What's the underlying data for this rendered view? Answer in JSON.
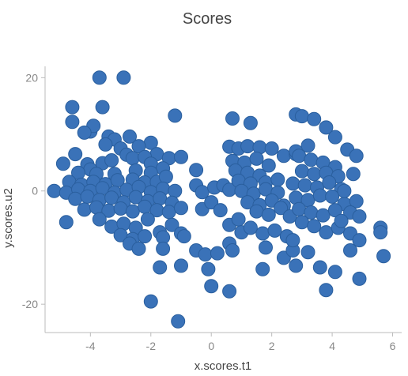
{
  "chart_data": {
    "type": "scatter",
    "title": "Scores",
    "xlabel": "x.scores.t1",
    "ylabel": "y.scores.u2",
    "xlim": [
      -5.5,
      6.3
    ],
    "ylim": [
      -25,
      22
    ],
    "x_ticks": [
      -4,
      -2,
      0,
      2,
      4,
      6
    ],
    "x_tick_labels": [
      "-4",
      "-2",
      "0",
      "2",
      "4",
      "6"
    ],
    "y_ticks": [
      -20,
      0,
      20
    ],
    "y_tick_labels": [
      "-20",
      "0",
      "20"
    ],
    "grid": false,
    "point_color": "#3a72b8",
    "series": [
      {
        "points": [
          [
            -3.7,
            20.0
          ],
          [
            -2.9,
            20.0
          ],
          [
            -4.6,
            14.8
          ],
          [
            -3.6,
            14.8
          ],
          [
            -4.6,
            12.2
          ],
          [
            -4.0,
            10.5
          ],
          [
            -3.9,
            11.5
          ],
          [
            -4.2,
            10.3
          ],
          [
            -3.4,
            9.6
          ],
          [
            -3.2,
            9.1
          ],
          [
            -2.7,
            9.6
          ],
          [
            -2.0,
            8.5
          ],
          [
            -1.2,
            13.3
          ],
          [
            -3.5,
            8.2
          ],
          [
            -3.0,
            7.5
          ],
          [
            -2.4,
            7.9
          ],
          [
            -1.8,
            6.5
          ],
          [
            -1.4,
            5.8
          ],
          [
            -1.0,
            6.0
          ],
          [
            -4.5,
            6.5
          ],
          [
            -4.9,
            4.8
          ],
          [
            -4.1,
            4.7
          ],
          [
            -3.6,
            4.9
          ],
          [
            -2.8,
            6.4
          ],
          [
            -2.6,
            5.8
          ],
          [
            -2.2,
            6.0
          ],
          [
            -2.0,
            4.8
          ],
          [
            -1.6,
            4.0
          ],
          [
            -3.3,
            5.4
          ],
          [
            -4.0,
            3.8
          ],
          [
            -4.4,
            3.2
          ],
          [
            -3.8,
            3.0
          ],
          [
            -3.2,
            3.0
          ],
          [
            -2.5,
            3.6
          ],
          [
            -2.0,
            3.2
          ],
          [
            -4.7,
            1.6
          ],
          [
            -4.3,
            1.1
          ],
          [
            -3.9,
            1.6
          ],
          [
            -3.5,
            1.2
          ],
          [
            -3.1,
            1.9
          ],
          [
            -2.6,
            2.0
          ],
          [
            -2.2,
            1.5
          ],
          [
            -1.8,
            1.6
          ],
          [
            -1.5,
            2.5
          ],
          [
            -5.2,
            0.0
          ],
          [
            -4.8,
            -0.3
          ],
          [
            -4.4,
            0.3
          ],
          [
            -4.0,
            0.0
          ],
          [
            -3.6,
            0.5
          ],
          [
            -3.2,
            -0.3
          ],
          [
            -2.8,
            0.2
          ],
          [
            -2.4,
            0.7
          ],
          [
            -2.0,
            -0.2
          ],
          [
            -1.6,
            0.4
          ],
          [
            -1.2,
            0.0
          ],
          [
            -4.5,
            -1.4
          ],
          [
            -4.1,
            -1.0
          ],
          [
            -3.7,
            -1.6
          ],
          [
            -3.3,
            -1.2
          ],
          [
            -2.9,
            -2.0
          ],
          [
            -2.5,
            -1.1
          ],
          [
            -2.1,
            -1.8
          ],
          [
            -1.7,
            -1.3
          ],
          [
            -1.3,
            -2.1
          ],
          [
            -4.2,
            -3.3
          ],
          [
            -3.8,
            -2.9
          ],
          [
            -3.4,
            -3.5
          ],
          [
            -3.0,
            -3.1
          ],
          [
            -2.6,
            -3.6
          ],
          [
            -2.2,
            -2.8
          ],
          [
            -1.8,
            -3.4
          ],
          [
            -1.4,
            -3.7
          ],
          [
            -1.0,
            -3.0
          ],
          [
            -4.8,
            -5.5
          ],
          [
            -3.7,
            -5.0
          ],
          [
            -3.3,
            -6.3
          ],
          [
            -2.9,
            -5.8
          ],
          [
            -2.5,
            -6.5
          ],
          [
            -2.1,
            -5.0
          ],
          [
            -1.7,
            -7.3
          ],
          [
            -1.3,
            -6.0
          ],
          [
            -1.0,
            -7.5
          ],
          [
            -3.0,
            -7.8
          ],
          [
            -2.6,
            -8.5
          ],
          [
            -2.2,
            -8.0
          ],
          [
            -1.6,
            -8.2
          ],
          [
            -0.9,
            -8.0
          ],
          [
            -2.7,
            -9.3
          ],
          [
            -2.4,
            -10.2
          ],
          [
            -1.6,
            -10.2
          ],
          [
            -0.5,
            -10.5
          ],
          [
            -1.7,
            -13.5
          ],
          [
            -1.0,
            -13.2
          ],
          [
            -0.2,
            -11.2
          ],
          [
            0.2,
            -11.0
          ],
          [
            -0.1,
            -13.8
          ],
          [
            0.0,
            -16.8
          ],
          [
            -2.0,
            -19.5
          ],
          [
            -1.1,
            -23.0
          ],
          [
            -0.5,
            3.7
          ],
          [
            -0.5,
            1.0
          ],
          [
            -0.3,
            -0.2
          ],
          [
            0.1,
            0.6
          ],
          [
            0.4,
            1.0
          ],
          [
            0.6,
            0.2
          ],
          [
            -0.3,
            -3.2
          ],
          [
            0.0,
            -2.0
          ],
          [
            0.3,
            -3.4
          ],
          [
            0.6,
            -6.0
          ],
          [
            0.9,
            -5.0
          ],
          [
            1.0,
            -7.3
          ],
          [
            0.6,
            -9.3
          ],
          [
            0.7,
            -10.5
          ],
          [
            0.6,
            -17.7
          ],
          [
            0.7,
            12.8
          ],
          [
            1.3,
            12.0
          ],
          [
            0.6,
            7.8
          ],
          [
            0.9,
            7.5
          ],
          [
            1.2,
            7.9
          ],
          [
            1.6,
            7.7
          ],
          [
            2.0,
            7.5
          ],
          [
            2.4,
            6.2
          ],
          [
            2.8,
            6.5
          ],
          [
            0.7,
            5.3
          ],
          [
            1.1,
            5.0
          ],
          [
            1.5,
            5.7
          ],
          [
            1.9,
            4.5
          ],
          [
            0.8,
            3.6
          ],
          [
            1.2,
            3.2
          ],
          [
            1.6,
            2.7
          ],
          [
            0.9,
            1.8
          ],
          [
            1.3,
            1.3
          ],
          [
            1.8,
            1.5
          ],
          [
            2.2,
            2.0
          ],
          [
            1.0,
            0.0
          ],
          [
            1.4,
            -0.5
          ],
          [
            1.8,
            0.3
          ],
          [
            2.2,
            -0.3
          ],
          [
            1.2,
            -2.0
          ],
          [
            1.6,
            -2.5
          ],
          [
            2.0,
            -1.7
          ],
          [
            2.4,
            -2.6
          ],
          [
            1.5,
            -3.6
          ],
          [
            1.9,
            -4.2
          ],
          [
            2.3,
            -3.0
          ],
          [
            2.6,
            -4.5
          ],
          [
            1.3,
            -6.5
          ],
          [
            1.7,
            -7.5
          ],
          [
            2.1,
            -7.0
          ],
          [
            2.5,
            -8.0
          ],
          [
            1.8,
            -10.0
          ],
          [
            2.4,
            -11.8
          ],
          [
            1.7,
            -13.8
          ],
          [
            2.8,
            -13.2
          ],
          [
            2.7,
            -10.5
          ],
          [
            2.8,
            13.5
          ],
          [
            3.0,
            13.2
          ],
          [
            3.4,
            12.7
          ],
          [
            3.8,
            11.2
          ],
          [
            4.1,
            9.5
          ],
          [
            3.2,
            8.0
          ],
          [
            2.8,
            7.0
          ],
          [
            2.9,
            6.2
          ],
          [
            3.3,
            5.5
          ],
          [
            3.7,
            5.0
          ],
          [
            4.1,
            4.2
          ],
          [
            3.0,
            3.5
          ],
          [
            3.4,
            3.0
          ],
          [
            3.8,
            3.2
          ],
          [
            4.2,
            2.6
          ],
          [
            2.7,
            1.3
          ],
          [
            3.1,
            1.0
          ],
          [
            3.5,
            0.6
          ],
          [
            3.9,
            1.5
          ],
          [
            4.3,
            0.3
          ],
          [
            2.8,
            -1.2
          ],
          [
            3.2,
            -1.6
          ],
          [
            3.6,
            -0.8
          ],
          [
            4.0,
            -1.0
          ],
          [
            4.4,
            -2.3
          ],
          [
            2.9,
            -3.2
          ],
          [
            3.3,
            -3.8
          ],
          [
            3.7,
            -4.3
          ],
          [
            4.1,
            -3.4
          ],
          [
            3.0,
            -5.5
          ],
          [
            3.4,
            -6.2
          ],
          [
            3.8,
            -7.3
          ],
          [
            4.2,
            -6.5
          ],
          [
            3.2,
            -10.8
          ],
          [
            3.6,
            -13.5
          ],
          [
            3.8,
            -17.5
          ],
          [
            4.1,
            -14.3
          ],
          [
            2.7,
            -8.7
          ],
          [
            4.5,
            7.3
          ],
          [
            4.8,
            6.2
          ],
          [
            4.7,
            3.0
          ],
          [
            4.4,
            0.0
          ],
          [
            4.8,
            -1.8
          ],
          [
            4.6,
            -3.8
          ],
          [
            4.3,
            -5.3
          ],
          [
            4.9,
            -4.5
          ],
          [
            4.6,
            -7.5
          ],
          [
            4.9,
            -8.7
          ],
          [
            4.6,
            -10.5
          ],
          [
            4.9,
            -15.5
          ],
          [
            5.6,
            -6.5
          ],
          [
            5.6,
            -7.3
          ],
          [
            5.7,
            -11.5
          ]
        ]
      }
    ]
  }
}
